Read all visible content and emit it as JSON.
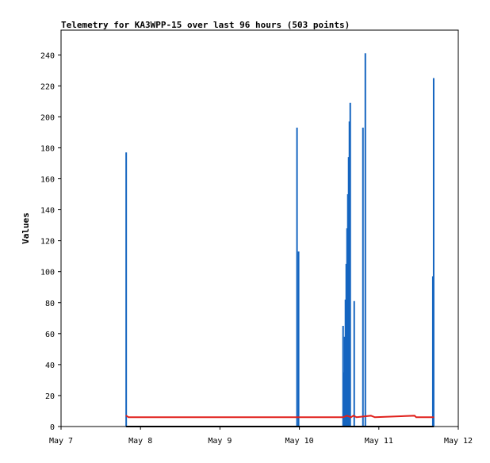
{
  "chart_data": {
    "type": "line",
    "title": "Telemetry for KA3WPP-15 over last 96 hours (503 points)",
    "xlabel": "",
    "ylabel": "Values",
    "x_ticks": [
      "May 7",
      "May 8",
      "May 9",
      "May 10",
      "May 11",
      "May 12"
    ],
    "y_ticks": [
      0,
      20,
      40,
      60,
      80,
      100,
      120,
      140,
      160,
      180,
      200,
      220,
      240
    ],
    "xlim_days": [
      0,
      5
    ],
    "ylim": [
      0,
      256
    ],
    "grid": false,
    "legend": "none",
    "series": [
      {
        "color": "#1565c0",
        "style": "spikes",
        "points": [
          {
            "x": 0.82,
            "y": 177
          },
          {
            "x": 2.97,
            "y": 193
          },
          {
            "x": 2.99,
            "y": 113
          },
          {
            "x": 3.55,
            "y": 65
          },
          {
            "x": 3.56,
            "y": 35
          },
          {
            "x": 3.57,
            "y": 58
          },
          {
            "x": 3.58,
            "y": 82
          },
          {
            "x": 3.59,
            "y": 105
          },
          {
            "x": 3.6,
            "y": 128
          },
          {
            "x": 3.61,
            "y": 150
          },
          {
            "x": 3.62,
            "y": 174
          },
          {
            "x": 3.63,
            "y": 197
          },
          {
            "x": 3.64,
            "y": 209
          },
          {
            "x": 3.69,
            "y": 81
          },
          {
            "x": 3.8,
            "y": 193
          },
          {
            "x": 3.83,
            "y": 241
          },
          {
            "x": 4.68,
            "y": 97
          },
          {
            "x": 4.69,
            "y": 225
          }
        ]
      },
      {
        "color": "#e0201b",
        "style": "line",
        "points": [
          {
            "x": 0.82,
            "y": 7
          },
          {
            "x": 0.85,
            "y": 6
          },
          {
            "x": 3.55,
            "y": 6
          },
          {
            "x": 3.6,
            "y": 7
          },
          {
            "x": 3.65,
            "y": 6
          },
          {
            "x": 3.68,
            "y": 7
          },
          {
            "x": 3.72,
            "y": 6
          },
          {
            "x": 3.9,
            "y": 7
          },
          {
            "x": 3.95,
            "y": 6
          },
          {
            "x": 4.45,
            "y": 7
          },
          {
            "x": 4.47,
            "y": 6
          },
          {
            "x": 4.69,
            "y": 6
          }
        ]
      },
      {
        "color": "#000000",
        "style": "line",
        "points": [
          {
            "x": 0.82,
            "y": 0
          },
          {
            "x": 4.69,
            "y": 0
          }
        ]
      }
    ]
  }
}
